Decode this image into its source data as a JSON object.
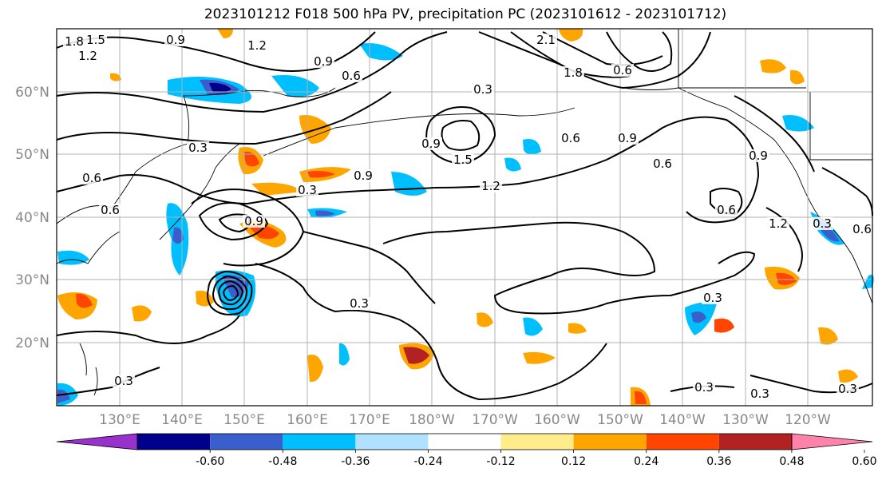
{
  "title": "2023101212 F018 500 hPa PV, precipitation PC (2023101612 - 2023101712)",
  "lat_labels": [
    "60°N",
    "50°N",
    "40°N",
    "30°N",
    "20°N"
  ],
  "lon_labels": [
    "130°E",
    "140°E",
    "150°E",
    "160°E",
    "170°E",
    "180°W",
    "170°W",
    "160°W",
    "150°W",
    "140°W",
    "130°W",
    "120°W"
  ],
  "colorbar": {
    "ticks": [
      "-0.60",
      "-0.48",
      "-0.36",
      "-0.24",
      "-0.12",
      "0.12",
      "0.24",
      "0.36",
      "0.48",
      "0.60"
    ],
    "colors": [
      "#9932cc",
      "#00008b",
      "#3a5fcd",
      "#00bfff",
      "#b0e2ff",
      "#ffffff",
      "#ffec8b",
      "#ffa500",
      "#ff4500",
      "#b22222",
      "#ff82ab"
    ]
  },
  "contour_labels": [
    "1.8",
    "1.5",
    "1.2",
    "0.9",
    "1.2",
    "2.1",
    "1.8",
    "0.6",
    "0.9",
    "0.6",
    "0.3",
    "0.9",
    "1.5",
    "1.2",
    "0.6",
    "0.9",
    "0.6",
    "0.9",
    "0.3",
    "0.6",
    "0.3",
    "0.6",
    "0.9",
    "0.6",
    "1.2",
    "0.3",
    "0.6",
    "0.3",
    "0.3",
    "0.3",
    "0.3",
    "0.3",
    "0.3",
    "0.9"
  ]
}
